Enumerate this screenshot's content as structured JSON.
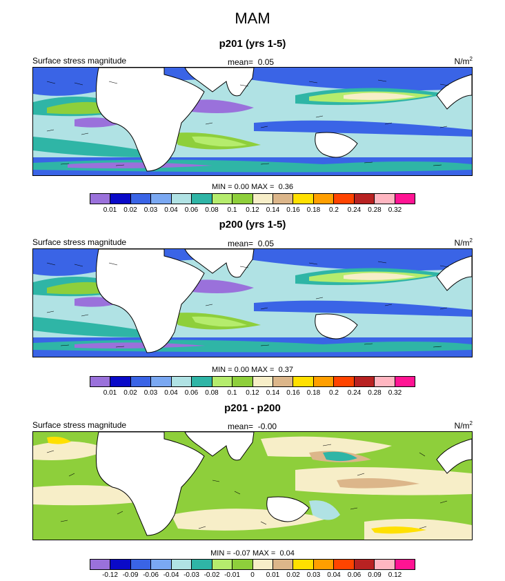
{
  "main_title": "MAM",
  "colors": {
    "seq": [
      "#9a71db",
      "#0a0ac8",
      "#3a64e6",
      "#7aa8f2",
      "#b0e2e4",
      "#2fb5a6",
      "#b5ec6d",
      "#8ecf3b",
      "#f7eec8",
      "#dcb68a",
      "#ffe000",
      "#ff9f00",
      "#ff4400",
      "#b82222",
      "#ffb6c1",
      "#ff1493"
    ],
    "land": "#ffffff",
    "outline": "#000000"
  },
  "panels": [
    {
      "title": "p201 (yrs 1-5)",
      "left_label": "Surface stress magnitude",
      "mean_label": "mean=",
      "mean_value": "0.05",
      "units": "N/m",
      "units_sup": "2",
      "min_label": "MIN =",
      "min_value": "0.00",
      "max_label": "MAX =",
      "max_value": "0.36",
      "ticks": [
        "0.01",
        "0.02",
        "0.03",
        "0.04",
        "0.06",
        "0.08",
        "0.1",
        "0.12",
        "0.14",
        "0.16",
        "0.18",
        "0.2",
        "0.24",
        "0.28",
        "0.32"
      ]
    },
    {
      "title": "p200 (yrs 1-5)",
      "left_label": "Surface stress magnitude",
      "mean_label": "mean=",
      "mean_value": "0.05",
      "units": "N/m",
      "units_sup": "2",
      "min_label": "MIN =",
      "min_value": "0.00",
      "max_label": "MAX =",
      "max_value": "0.37",
      "ticks": [
        "0.01",
        "0.02",
        "0.03",
        "0.04",
        "0.06",
        "0.08",
        "0.1",
        "0.12",
        "0.14",
        "0.16",
        "0.18",
        "0.2",
        "0.24",
        "0.28",
        "0.32"
      ]
    },
    {
      "title": "p201 - p200",
      "left_label": "Surface stress magnitude",
      "mean_label": "mean=",
      "mean_value": "-0.00",
      "units": "N/m",
      "units_sup": "2",
      "min_label": "MIN =",
      "min_value": "-0.07",
      "max_label": "MAX =",
      "max_value": "0.04",
      "ticks": [
        "-0.12",
        "-0.09",
        "-0.06",
        "-0.04",
        "-0.03",
        "-0.02",
        "-0.01",
        "0",
        "0.01",
        "0.02",
        "0.03",
        "0.04",
        "0.06",
        "0.09",
        "0.12"
      ]
    }
  ]
}
